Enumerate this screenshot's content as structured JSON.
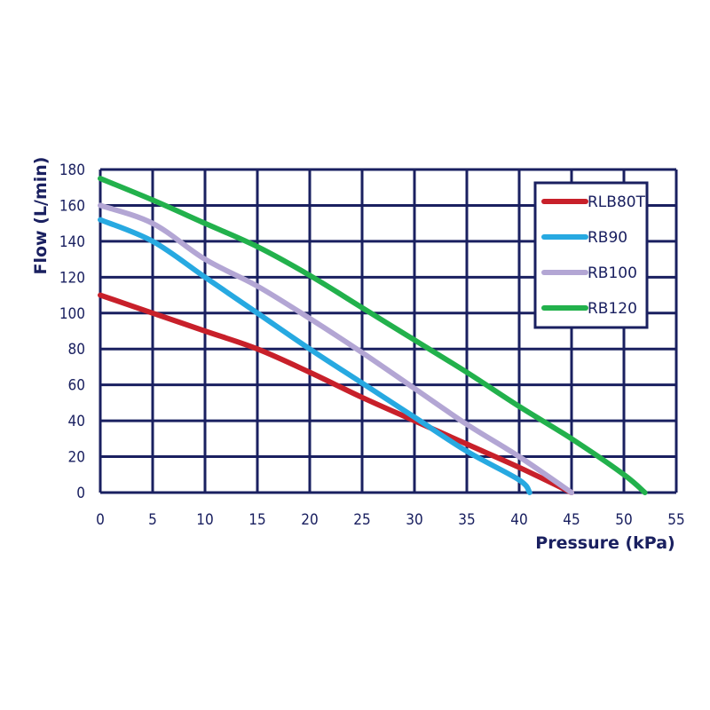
{
  "chart_data": {
    "type": "line",
    "title": "",
    "xlabel": "Pressure (kPa)",
    "ylabel": "Flow (L/min)",
    "xlim": [
      0,
      55
    ],
    "ylim": [
      0,
      180
    ],
    "x_ticks": [
      0,
      5,
      10,
      15,
      20,
      25,
      30,
      35,
      40,
      45,
      50,
      55
    ],
    "y_ticks": [
      0,
      20,
      40,
      60,
      80,
      100,
      120,
      140,
      160,
      180
    ],
    "grid": true,
    "legend_position": "upper right",
    "series": [
      {
        "name": "RLB80T",
        "color": "#c8202a",
        "x": [
          0,
          5,
          10,
          15,
          20,
          25,
          30,
          35,
          40,
          45
        ],
        "values": [
          110,
          100,
          90,
          80,
          67,
          53,
          40,
          27,
          14,
          0
        ]
      },
      {
        "name": "RB90",
        "color": "#27a9e1",
        "x": [
          0,
          5,
          10,
          15,
          20,
          25,
          30,
          35,
          40,
          41
        ],
        "values": [
          152,
          140,
          120,
          100,
          80,
          61,
          42,
          23,
          7,
          0
        ]
      },
      {
        "name": "RB100",
        "color": "#b3a6d4",
        "x": [
          0,
          5,
          10,
          15,
          20,
          25,
          30,
          35,
          40,
          45
        ],
        "values": [
          160,
          150,
          130,
          115,
          97,
          78,
          58,
          38,
          20,
          0
        ]
      },
      {
        "name": "RB120",
        "color": "#22b14c",
        "x": [
          0,
          5,
          10,
          15,
          20,
          25,
          30,
          35,
          40,
          45,
          50,
          52
        ],
        "values": [
          175,
          163,
          150,
          137,
          121,
          103,
          85,
          67,
          48,
          30,
          10,
          0
        ]
      }
    ]
  },
  "style": {
    "grid_color": "#1a2060",
    "text_color": "#1a2060"
  }
}
